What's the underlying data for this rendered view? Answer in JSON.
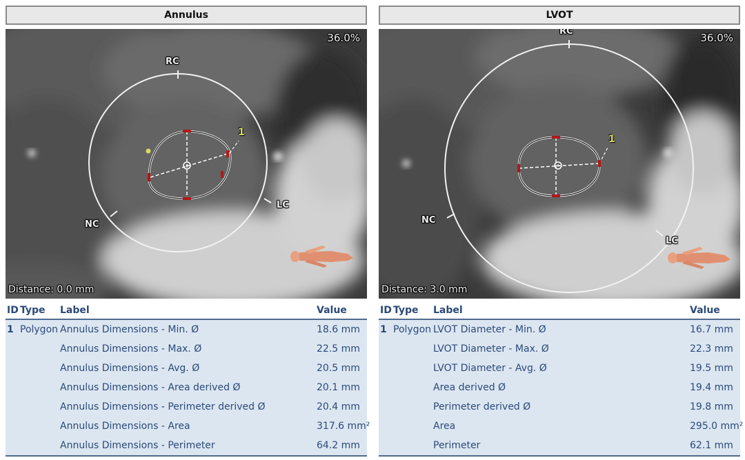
{
  "panels": [
    {
      "title": "Annulus",
      "zoom": "36.0%",
      "distance": "Distance: 0.0 mm",
      "cusps": {
        "rc": "RC",
        "nc": "NC",
        "lc": "LC"
      },
      "annotation_id": "1",
      "columns": {
        "id": "ID",
        "type": "Type",
        "label": "Label",
        "value": "Value"
      },
      "rows": [
        {
          "id": "1",
          "type": "Polygon",
          "label": "Annulus Dimensions - Min. Ø",
          "value": "18.6 mm"
        },
        {
          "id": "",
          "type": "",
          "label": "Annulus Dimensions - Max. Ø",
          "value": "22.5 mm"
        },
        {
          "id": "",
          "type": "",
          "label": "Annulus Dimensions - Avg. Ø",
          "value": "20.5 mm"
        },
        {
          "id": "",
          "type": "",
          "label": "Annulus Dimensions - Area derived Ø",
          "value": "20.1 mm"
        },
        {
          "id": "",
          "type": "",
          "label": "Annulus Dimensions - Perimeter derived Ø",
          "value": "20.4 mm"
        },
        {
          "id": "",
          "type": "",
          "label": "Annulus Dimensions - Area",
          "value": "317.6 mm²"
        },
        {
          "id": "",
          "type": "",
          "label": "Annulus Dimensions - Perimeter",
          "value": "64.2 mm"
        }
      ]
    },
    {
      "title": "LVOT",
      "zoom": "36.0%",
      "distance": "Distance: 3.0 mm",
      "cusps": {
        "rc": "RC",
        "nc": "NC",
        "lc": "LC"
      },
      "annotation_id": "1",
      "columns": {
        "id": "ID",
        "type": "Type",
        "label": "Label",
        "value": "Value"
      },
      "rows": [
        {
          "id": "1",
          "type": "Polygon",
          "label": "LVOT Diameter - Min. Ø",
          "value": "16.7 mm"
        },
        {
          "id": "",
          "type": "",
          "label": "LVOT Diameter - Max. Ø",
          "value": "22.3 mm"
        },
        {
          "id": "",
          "type": "",
          "label": "LVOT Diameter - Avg. Ø",
          "value": "19.5 mm"
        },
        {
          "id": "",
          "type": "",
          "label": "Area derived Ø",
          "value": "19.4 mm"
        },
        {
          "id": "",
          "type": "",
          "label": "Perimeter derived Ø",
          "value": "19.8 mm"
        },
        {
          "id": "",
          "type": "",
          "label": "Area",
          "value": "295.0 mm²"
        },
        {
          "id": "",
          "type": "",
          "label": "Perimeter",
          "value": "62.1 mm"
        }
      ]
    }
  ],
  "icons": {
    "orientation": "body-orientation-icon"
  },
  "colors": {
    "header_text": "#2b4a78",
    "table_bg": "#dce6f1",
    "overlay_white": "#f2f2f2",
    "marker_red": "#b01818",
    "id_yellow": "#d9d964"
  }
}
